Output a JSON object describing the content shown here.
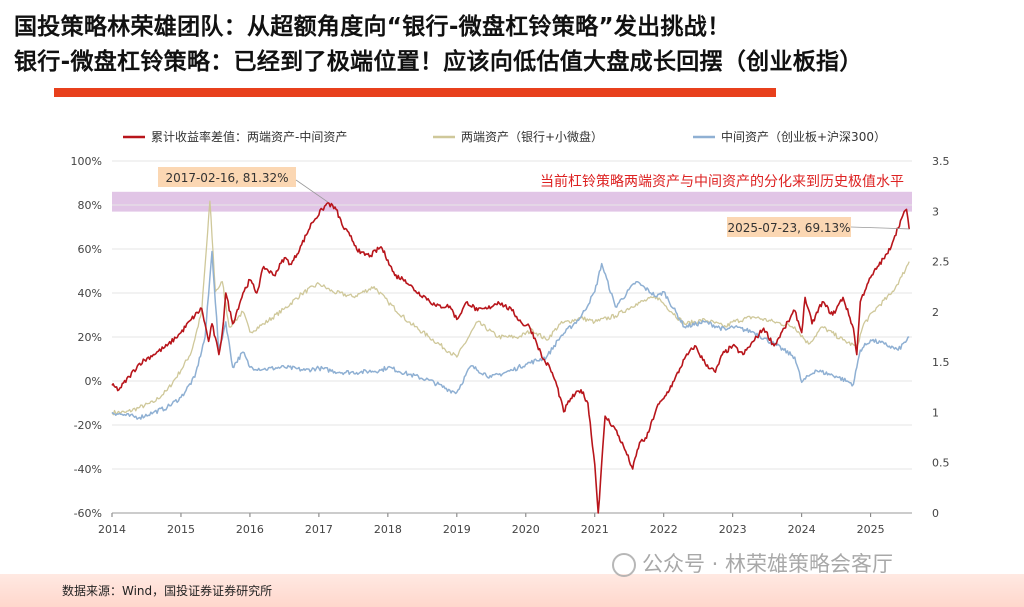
{
  "header": {
    "title_line1": "国投策略林荣雄团队：从超额角度向“银行-微盘杠铃策略”发出挑战！",
    "title_line2": "银行-微盘杠铃策略：已经到了极端位置！应该向低估值大盘成长回摆（创业板指）"
  },
  "footer": {
    "source": "数据来源：Wind，国投证券证券研究所",
    "watermark": "公众号 · 林荣雄策略会客厅"
  },
  "colors": {
    "accent_red": "#e8401c",
    "spread": "#b8151b",
    "barbell": "#cfc89a",
    "middle": "#8fb0d3",
    "highlight_band": "#d9b7e0",
    "annotation_box": "#fbd7b3"
  },
  "chart_data": {
    "type": "line",
    "legend": [
      {
        "name": "累计收益率差值：两端资产-中间资产",
        "color": "#b8151b",
        "axis": "left"
      },
      {
        "name": "两端资产（银行+小微盘）",
        "color": "#cfc89a",
        "axis": "right"
      },
      {
        "name": "中间资产（创业板+沪深300）",
        "color": "#8fb0d3",
        "axis": "right"
      }
    ],
    "x_ticks": [
      "2014",
      "2015",
      "2016",
      "2017",
      "2018",
      "2019",
      "2020",
      "2021",
      "2022",
      "2023",
      "2024",
      "2025"
    ],
    "xlim": [
      2014.0,
      2025.6
    ],
    "y_left": {
      "ticks": [
        "-60%",
        "-40%",
        "-20%",
        "0%",
        "20%",
        "40%",
        "60%",
        "80%",
        "100%"
      ],
      "range": [
        -60,
        100
      ]
    },
    "y_right": {
      "ticks": [
        "0",
        "0.5",
        "1",
        "1.5",
        "2",
        "2.5",
        "3",
        "3.5"
      ],
      "range": [
        0,
        3.5
      ]
    },
    "band": {
      "from": 77,
      "to": 86
    },
    "band_label": "当前杠铃策略两端资产与中间资产的分化来到历史极值水平",
    "annotations": [
      {
        "text": "2017-02-16, 81.32%",
        "x": 2017.13,
        "y": 81.32
      },
      {
        "text": "2025-07-23, 69.13%",
        "x": 2025.56,
        "y": 69.13
      }
    ],
    "series": [
      {
        "name": "累计收益率差值：两端资产-中间资产",
        "axis": "left",
        "points": [
          [
            2014.0,
            -2
          ],
          [
            2014.1,
            -4
          ],
          [
            2014.25,
            2
          ],
          [
            2014.4,
            8
          ],
          [
            2014.6,
            12
          ],
          [
            2014.8,
            16
          ],
          [
            2015.0,
            22
          ],
          [
            2015.15,
            28
          ],
          [
            2015.3,
            33
          ],
          [
            2015.4,
            18
          ],
          [
            2015.45,
            26
          ],
          [
            2015.55,
            12
          ],
          [
            2015.6,
            22
          ],
          [
            2015.65,
            40
          ],
          [
            2015.75,
            26
          ],
          [
            2015.9,
            40
          ],
          [
            2016.0,
            46
          ],
          [
            2016.1,
            40
          ],
          [
            2016.2,
            52
          ],
          [
            2016.35,
            48
          ],
          [
            2016.5,
            56
          ],
          [
            2016.6,
            53
          ],
          [
            2016.75,
            62
          ],
          [
            2016.9,
            72
          ],
          [
            2017.05,
            78
          ],
          [
            2017.13,
            81
          ],
          [
            2017.25,
            78
          ],
          [
            2017.35,
            70
          ],
          [
            2017.45,
            66
          ],
          [
            2017.6,
            58
          ],
          [
            2017.75,
            57
          ],
          [
            2017.9,
            61
          ],
          [
            2018.0,
            55
          ],
          [
            2018.1,
            48
          ],
          [
            2018.25,
            46
          ],
          [
            2018.4,
            41
          ],
          [
            2018.55,
            38
          ],
          [
            2018.7,
            34
          ],
          [
            2018.9,
            34
          ],
          [
            2019.0,
            28
          ],
          [
            2019.15,
            36
          ],
          [
            2019.3,
            32
          ],
          [
            2019.45,
            33
          ],
          [
            2019.6,
            36
          ],
          [
            2019.8,
            32
          ],
          [
            2019.95,
            26
          ],
          [
            2020.05,
            25
          ],
          [
            2020.15,
            18
          ],
          [
            2020.25,
            10
          ],
          [
            2020.35,
            6
          ],
          [
            2020.45,
            -2
          ],
          [
            2020.55,
            -14
          ],
          [
            2020.65,
            -8
          ],
          [
            2020.8,
            -4
          ],
          [
            2020.9,
            -10
          ],
          [
            2021.0,
            -38
          ],
          [
            2021.05,
            -60
          ],
          [
            2021.15,
            -16
          ],
          [
            2021.3,
            -22
          ],
          [
            2021.45,
            -32
          ],
          [
            2021.55,
            -40
          ],
          [
            2021.65,
            -28
          ],
          [
            2021.75,
            -26
          ],
          [
            2021.9,
            -12
          ],
          [
            2022.0,
            -8
          ],
          [
            2022.15,
            0
          ],
          [
            2022.3,
            10
          ],
          [
            2022.45,
            16
          ],
          [
            2022.6,
            8
          ],
          [
            2022.75,
            4
          ],
          [
            2022.85,
            12
          ],
          [
            2023.0,
            16
          ],
          [
            2023.15,
            12
          ],
          [
            2023.3,
            18
          ],
          [
            2023.45,
            24
          ],
          [
            2023.6,
            16
          ],
          [
            2023.75,
            24
          ],
          [
            2023.9,
            32
          ],
          [
            2024.0,
            22
          ],
          [
            2024.05,
            38
          ],
          [
            2024.15,
            26
          ],
          [
            2024.3,
            36
          ],
          [
            2024.45,
            30
          ],
          [
            2024.6,
            38
          ],
          [
            2024.75,
            24
          ],
          [
            2024.8,
            12
          ],
          [
            2024.85,
            36
          ],
          [
            2024.95,
            44
          ],
          [
            2025.1,
            52
          ],
          [
            2025.25,
            58
          ],
          [
            2025.35,
            66
          ],
          [
            2025.45,
            74
          ],
          [
            2025.52,
            78
          ],
          [
            2025.56,
            69
          ]
        ]
      },
      {
        "name": "两端资产（银行+小微盘）",
        "axis": "right",
        "points": [
          [
            2014.0,
            1.0
          ],
          [
            2014.2,
            1.0
          ],
          [
            2014.4,
            1.05
          ],
          [
            2014.6,
            1.1
          ],
          [
            2014.8,
            1.22
          ],
          [
            2015.0,
            1.42
          ],
          [
            2015.15,
            1.6
          ],
          [
            2015.3,
            2.0
          ],
          [
            2015.42,
            3.1
          ],
          [
            2015.5,
            2.2
          ],
          [
            2015.6,
            2.3
          ],
          [
            2015.7,
            1.85
          ],
          [
            2015.9,
            2.0
          ],
          [
            2016.0,
            1.8
          ],
          [
            2016.2,
            1.88
          ],
          [
            2016.5,
            2.03
          ],
          [
            2016.75,
            2.18
          ],
          [
            2017.0,
            2.28
          ],
          [
            2017.2,
            2.2
          ],
          [
            2017.5,
            2.15
          ],
          [
            2017.8,
            2.25
          ],
          [
            2018.0,
            2.1
          ],
          [
            2018.3,
            1.9
          ],
          [
            2018.6,
            1.75
          ],
          [
            2018.9,
            1.6
          ],
          [
            2019.0,
            1.55
          ],
          [
            2019.3,
            1.9
          ],
          [
            2019.6,
            1.75
          ],
          [
            2019.9,
            1.75
          ],
          [
            2020.1,
            1.82
          ],
          [
            2020.3,
            1.72
          ],
          [
            2020.5,
            1.88
          ],
          [
            2020.8,
            1.94
          ],
          [
            2021.0,
            1.9
          ],
          [
            2021.3,
            1.96
          ],
          [
            2021.6,
            2.08
          ],
          [
            2021.9,
            2.15
          ],
          [
            2022.0,
            2.08
          ],
          [
            2022.3,
            1.88
          ],
          [
            2022.6,
            1.92
          ],
          [
            2022.9,
            1.85
          ],
          [
            2023.0,
            1.9
          ],
          [
            2023.3,
            1.95
          ],
          [
            2023.6,
            1.9
          ],
          [
            2023.9,
            1.85
          ],
          [
            2024.1,
            1.68
          ],
          [
            2024.3,
            1.85
          ],
          [
            2024.6,
            1.72
          ],
          [
            2024.8,
            1.65
          ],
          [
            2024.9,
            1.88
          ],
          [
            2025.1,
            2.05
          ],
          [
            2025.3,
            2.18
          ],
          [
            2025.45,
            2.35
          ],
          [
            2025.56,
            2.5
          ]
        ]
      },
      {
        "name": "中间资产（创业板+沪深300）",
        "axis": "right",
        "points": [
          [
            2014.0,
            1.0
          ],
          [
            2014.2,
            0.97
          ],
          [
            2014.4,
            0.95
          ],
          [
            2014.6,
            1.0
          ],
          [
            2014.8,
            1.05
          ],
          [
            2015.0,
            1.15
          ],
          [
            2015.2,
            1.35
          ],
          [
            2015.35,
            1.75
          ],
          [
            2015.45,
            2.6
          ],
          [
            2015.55,
            1.6
          ],
          [
            2015.65,
            1.9
          ],
          [
            2015.75,
            1.45
          ],
          [
            2015.9,
            1.6
          ],
          [
            2016.0,
            1.45
          ],
          [
            2016.2,
            1.43
          ],
          [
            2016.5,
            1.45
          ],
          [
            2016.8,
            1.42
          ],
          [
            2017.0,
            1.44
          ],
          [
            2017.3,
            1.4
          ],
          [
            2017.6,
            1.4
          ],
          [
            2017.9,
            1.42
          ],
          [
            2018.0,
            1.45
          ],
          [
            2018.3,
            1.38
          ],
          [
            2018.6,
            1.32
          ],
          [
            2018.9,
            1.22
          ],
          [
            2019.0,
            1.2
          ],
          [
            2019.2,
            1.46
          ],
          [
            2019.5,
            1.35
          ],
          [
            2019.8,
            1.42
          ],
          [
            2020.0,
            1.48
          ],
          [
            2020.3,
            1.55
          ],
          [
            2020.5,
            1.75
          ],
          [
            2020.8,
            1.95
          ],
          [
            2021.0,
            2.2
          ],
          [
            2021.1,
            2.48
          ],
          [
            2021.3,
            2.05
          ],
          [
            2021.6,
            2.3
          ],
          [
            2021.9,
            2.15
          ],
          [
            2022.0,
            2.2
          ],
          [
            2022.3,
            1.85
          ],
          [
            2022.6,
            1.9
          ],
          [
            2022.9,
            1.82
          ],
          [
            2023.0,
            1.85
          ],
          [
            2023.3,
            1.8
          ],
          [
            2023.6,
            1.68
          ],
          [
            2023.9,
            1.55
          ],
          [
            2024.0,
            1.3
          ],
          [
            2024.2,
            1.42
          ],
          [
            2024.5,
            1.36
          ],
          [
            2024.75,
            1.28
          ],
          [
            2024.85,
            1.62
          ],
          [
            2025.0,
            1.72
          ],
          [
            2025.2,
            1.68
          ],
          [
            2025.4,
            1.62
          ],
          [
            2025.56,
            1.75
          ]
        ]
      }
    ]
  }
}
